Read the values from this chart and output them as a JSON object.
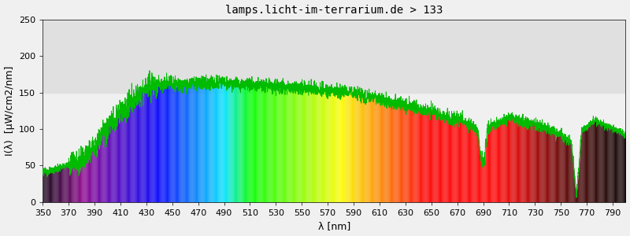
{
  "title": "lamps.licht-im-terrarium.de > 133",
  "xlabel": "λ [nm]",
  "ylabel": "I(λ)  [μW/cm2/nm]",
  "xlim": [
    350,
    800
  ],
  "ylim": [
    0,
    250
  ],
  "yticks": [
    0,
    50,
    100,
    150,
    200,
    250
  ],
  "xticks": [
    350,
    370,
    390,
    410,
    430,
    450,
    470,
    490,
    510,
    530,
    550,
    570,
    590,
    610,
    630,
    650,
    670,
    690,
    710,
    730,
    750,
    770,
    790
  ],
  "bg_color": "#f0f0f0",
  "gray_band_color": "#e0e0e0",
  "gray_band_bottom": 150,
  "line_color": "#00bb00",
  "line_width": 0.7,
  "title_fontsize": 10,
  "axis_label_fontsize": 9,
  "tick_fontsize": 8
}
